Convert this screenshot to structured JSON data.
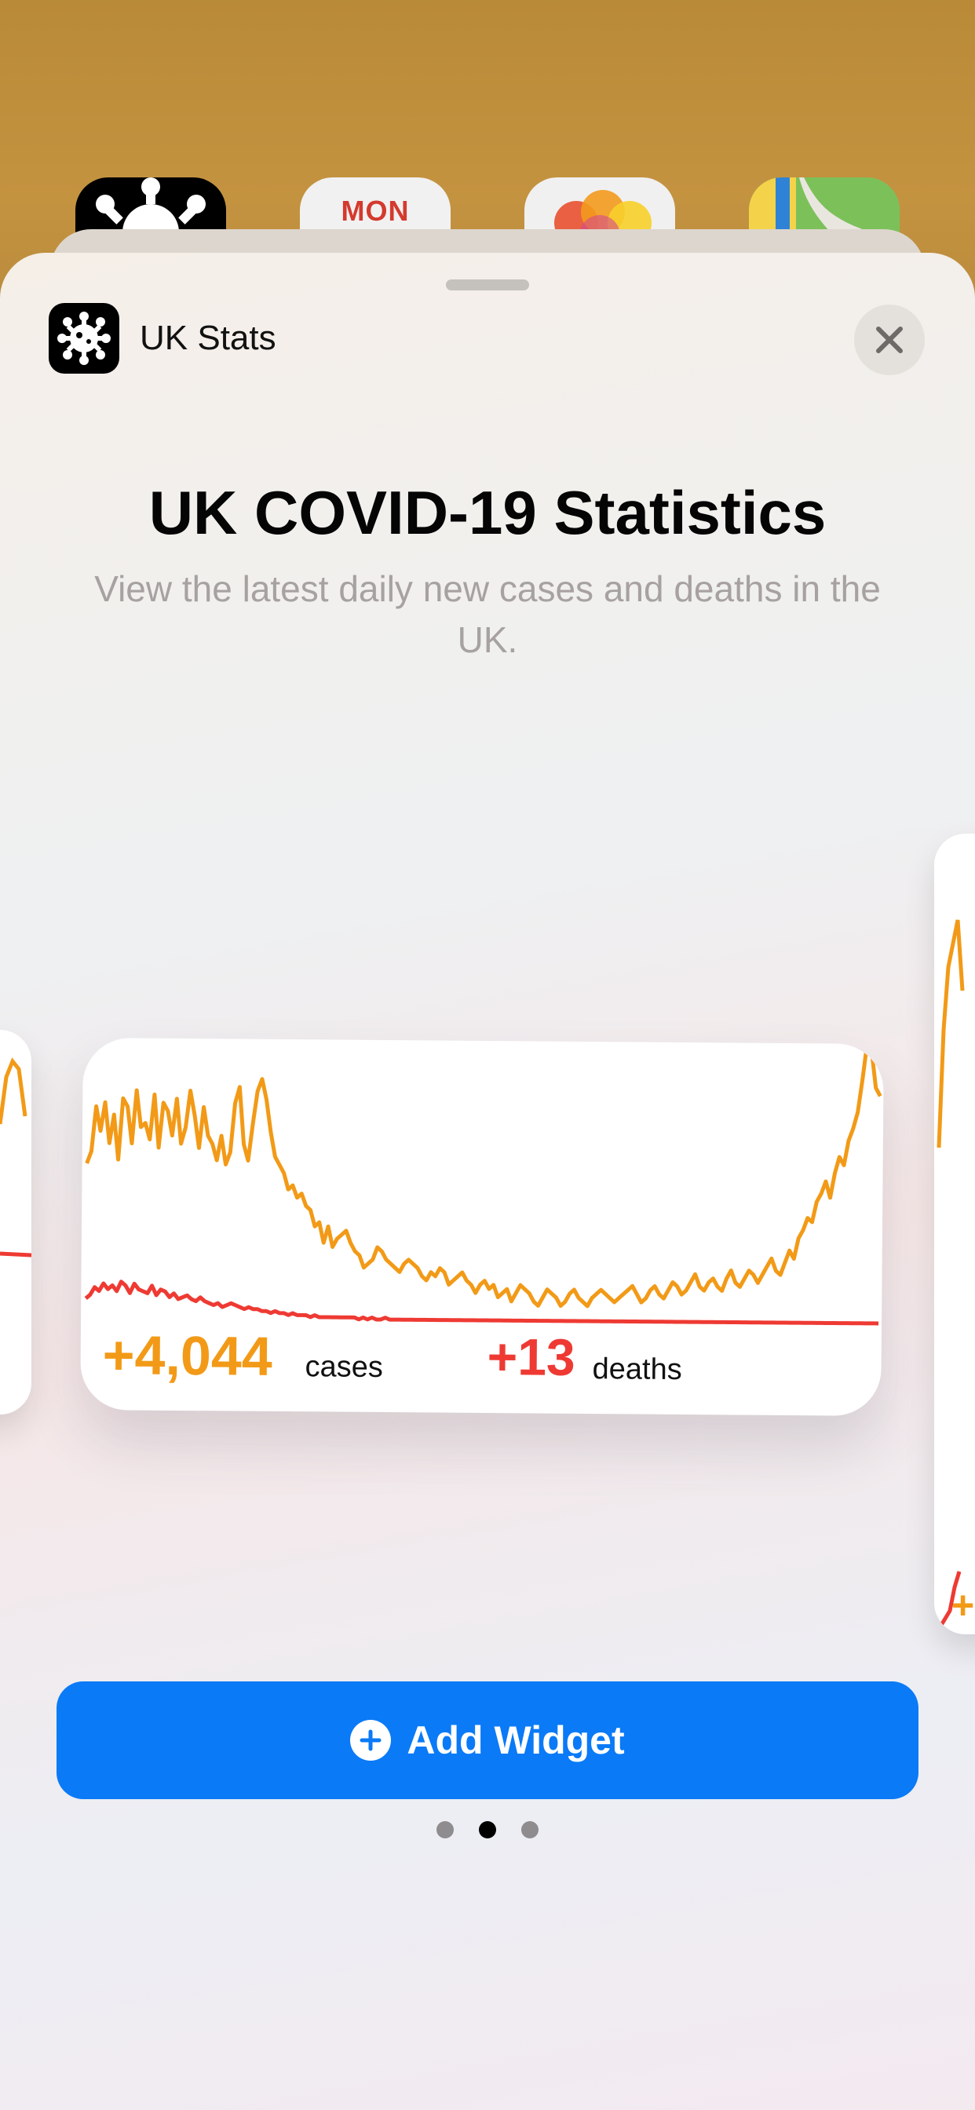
{
  "home": {
    "calendar_day": "MON"
  },
  "sheet": {
    "app_name": "UK Stats",
    "title": "UK COVID-19 Statistics",
    "description": "View the latest daily new cases and deaths in the UK.",
    "add_button_label": "Add Widget",
    "page_index": 2,
    "page_count": 3
  },
  "widget": {
    "cases_value": "+4,044",
    "cases_label": "cases",
    "deaths_value": "+13",
    "deaths_label": "deaths",
    "cases_color": "#f29a17",
    "deaths_color": "#ee3a33"
  },
  "chart_data": {
    "type": "line",
    "series": [
      {
        "values": [
          60,
          66,
          88,
          76,
          90,
          70,
          84,
          62,
          92,
          88,
          70,
          96,
          78,
          80,
          72,
          94,
          68,
          90,
          86,
          74,
          92,
          70,
          78,
          96,
          84,
          68,
          88,
          74,
          70,
          62,
          74,
          60,
          66,
          90,
          98,
          70,
          62,
          80,
          96,
          102,
          92,
          76,
          64,
          60,
          56,
          48,
          50,
          44,
          46,
          40,
          38,
          30,
          32,
          22,
          30,
          20,
          24,
          26,
          28,
          22,
          18,
          16,
          10,
          12,
          14,
          20,
          18,
          14,
          12,
          10,
          8,
          12,
          14,
          12,
          10,
          6,
          4,
          8,
          6,
          10,
          8,
          2,
          4,
          6,
          8,
          4,
          2,
          -2,
          2,
          4,
          0,
          2,
          -4,
          -2,
          0,
          -6,
          -2,
          2,
          0,
          -2,
          -6,
          -8,
          -4,
          0,
          -2,
          -4,
          -8,
          -6,
          -2,
          0,
          -4,
          -6,
          -8,
          -4,
          -2,
          0,
          -2,
          -4,
          -6,
          -4,
          -2,
          0,
          2,
          -2,
          -6,
          -4,
          0,
          2,
          -2,
          -4,
          0,
          4,
          2,
          -2,
          0,
          4,
          8,
          2,
          0,
          4,
          6,
          2,
          0,
          6,
          10,
          4,
          2,
          6,
          10,
          8,
          4,
          8,
          12,
          16,
          10,
          8,
          14,
          20,
          16,
          26,
          30,
          36,
          34,
          44,
          48,
          54,
          46,
          58,
          66,
          62,
          74,
          80,
          88,
          104,
          122,
          118,
          100,
          96
        ],
        "color": "#f29a17"
      },
      {
        "values": [
          10,
          12,
          16,
          14,
          18,
          15,
          17,
          14,
          19,
          17,
          13,
          18,
          15,
          14,
          13,
          17,
          12,
          15,
          14,
          11,
          13,
          10,
          11,
          12,
          10,
          9,
          11,
          9,
          8,
          7,
          8,
          6,
          7,
          8,
          7,
          6,
          5,
          6,
          5,
          5,
          4,
          4,
          3,
          4,
          3,
          3,
          2,
          3,
          2,
          2,
          2,
          1,
          2,
          1,
          1,
          1,
          1,
          1,
          1,
          1,
          1,
          1,
          0,
          1,
          0,
          1,
          0,
          0,
          1,
          0,
          0,
          0,
          0,
          0,
          0,
          0,
          0,
          0,
          0,
          0,
          0,
          0,
          0,
          0,
          0,
          0,
          0,
          0,
          0,
          0,
          0,
          0,
          0,
          0,
          0,
          0,
          0,
          0,
          0,
          0,
          0,
          0,
          0,
          0,
          0,
          0,
          0,
          0,
          0,
          0,
          0,
          0,
          0,
          0,
          0,
          0,
          0,
          0,
          0,
          0,
          0,
          0,
          0,
          0,
          0,
          0,
          0,
          0,
          0,
          0,
          0,
          0,
          0,
          0,
          0,
          0,
          0,
          0,
          0,
          0,
          0,
          0,
          0,
          0,
          0,
          0,
          0,
          0,
          0,
          0,
          0,
          0,
          0,
          0,
          0,
          0,
          0,
          0,
          0,
          0,
          0,
          0,
          0,
          0,
          0,
          0,
          0,
          0,
          0,
          0,
          0,
          0,
          0,
          0,
          0,
          0,
          0,
          0,
          0,
          0,
          0
        ],
        "color": "#ee3a33"
      }
    ],
    "grid": false,
    "legend": "none"
  }
}
